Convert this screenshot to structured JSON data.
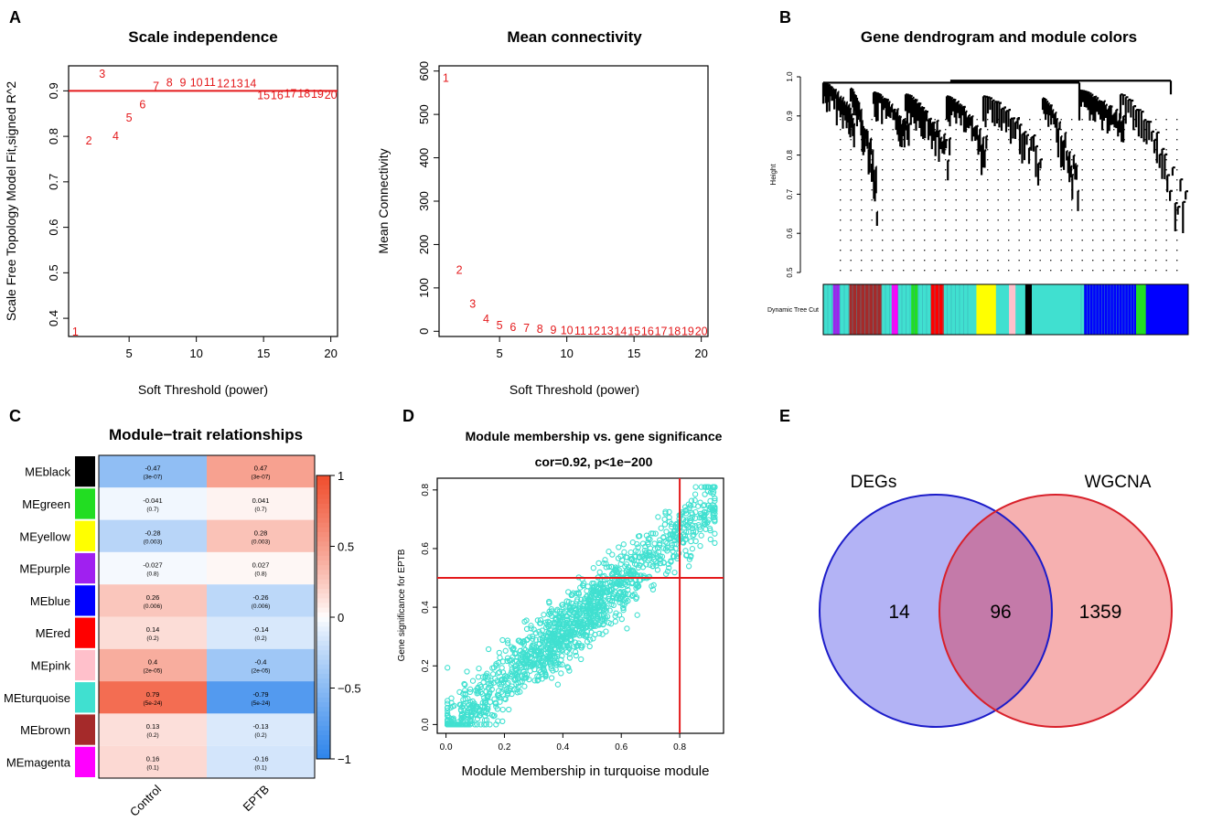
{
  "panel_labels": {
    "a": "A",
    "b": "B",
    "c": "C",
    "d": "D",
    "e": "E"
  },
  "colors": {
    "red": "#e41a1c",
    "black": "#000000",
    "green": "#22dd22",
    "yellow": "#ffff00",
    "purple": "#a020f0",
    "blue": "#0000ff",
    "mred": "#ff0000",
    "pink": "#ffc0cb",
    "turquoise": "#40e0d0",
    "brown": "#a52a2a",
    "magenta": "#ff00ff",
    "venn_left_fill": "#b3b3f5",
    "venn_left_stroke": "#1c1cc9",
    "venn_right_fill": "#f6b0b0",
    "venn_right_stroke": "#d8202a",
    "venn_overlap_fill": "#c47aa9"
  },
  "chart_data": [
    {
      "id": "scale_independence",
      "type": "scatter",
      "title": "Scale independence",
      "xlabel": "Soft Threshold (power)",
      "ylabel": "Scale Free Topology Model Fit,signed R^2",
      "xlim": [
        0.5,
        20.5
      ],
      "ylim": [
        0.36,
        0.955
      ],
      "xticks": [
        "5",
        "10",
        "15",
        "20"
      ],
      "yticks": [
        "0.4",
        "0.5",
        "0.6",
        "0.7",
        "0.8",
        "0.9"
      ],
      "x": [
        1,
        2,
        3,
        4,
        5,
        6,
        7,
        8,
        9,
        10,
        11,
        12,
        13,
        14,
        15,
        16,
        17,
        18,
        19,
        20
      ],
      "values": [
        0.37,
        0.79,
        0.937,
        0.8,
        0.84,
        0.87,
        0.91,
        0.918,
        0.918,
        0.918,
        0.919,
        0.916,
        0.916,
        0.916,
        0.89,
        0.89,
        0.894,
        0.894,
        0.893,
        0.891
      ],
      "point_labels": [
        "1",
        "2",
        "3",
        "4",
        "5",
        "6",
        "7",
        "8",
        "9",
        "10",
        "11",
        "12",
        "13",
        "14",
        "15",
        "16",
        "17",
        "18",
        "19",
        "20"
      ],
      "hline": 0.9
    },
    {
      "id": "mean_connectivity",
      "type": "scatter",
      "title": "Mean connectivity",
      "xlabel": "Soft Threshold (power)",
      "ylabel": "Mean Connectivity",
      "xlim": [
        0.5,
        20.5
      ],
      "ylim": [
        -12,
        612
      ],
      "xticks": [
        "5",
        "10",
        "15",
        "20"
      ],
      "yticks": [
        "0",
        "100",
        "200",
        "300",
        "400",
        "500",
        "600"
      ],
      "x": [
        1,
        2,
        3,
        4,
        5,
        6,
        7,
        8,
        9,
        10,
        11,
        12,
        13,
        14,
        15,
        16,
        17,
        18,
        19,
        20
      ],
      "values": [
        584,
        141,
        63,
        28,
        13,
        9,
        7,
        5,
        3,
        2,
        1,
        1,
        1,
        0,
        0,
        0,
        0,
        0,
        0,
        0
      ],
      "point_labels": [
        "1",
        "2",
        "3",
        "4",
        "5",
        "6",
        "7",
        "8",
        "9",
        "10",
        "11",
        "12",
        "13",
        "14",
        "15",
        "16",
        "17",
        "18",
        "19",
        "20"
      ]
    },
    {
      "id": "dendrogram",
      "type": "other",
      "title": "Gene dendrogram and module colors",
      "ylabel": "Height",
      "yticks": [
        "0.5",
        "0.6",
        "0.7",
        "0.8",
        "0.9",
        "1.0"
      ],
      "ylim": [
        0.5,
        1.0
      ],
      "color_row_label": "Dynamic Tree Cut",
      "module_bar": [
        [
          "#40e0d0",
          3
        ],
        [
          "#a020f0",
          2
        ],
        [
          "#40e0d0",
          3
        ],
        [
          "#a52a2a",
          10
        ],
        [
          "#40e0d0",
          3
        ],
        [
          "#ff00ff",
          2
        ],
        [
          "#40e0d0",
          4
        ],
        [
          "#22dd22",
          2
        ],
        [
          "#40e0d0",
          4
        ],
        [
          "#ff0000",
          4
        ],
        [
          "#40e0d0",
          10
        ],
        [
          "#ffff00",
          6
        ],
        [
          "#40e0d0",
          4
        ],
        [
          "#ffc0cb",
          2
        ],
        [
          "#40e0d0",
          3
        ],
        [
          "#000000",
          2
        ],
        [
          "#40e0d0",
          16
        ],
        [
          "#0000ff",
          16
        ],
        [
          "#22dd22",
          3
        ],
        [
          "#0000ff",
          13
        ]
      ]
    },
    {
      "id": "module_trait",
      "type": "heatmap",
      "title": "Module−trait relationships",
      "columns": [
        "Control",
        "EPTB"
      ],
      "rows": [
        "MEblack",
        "MEgreen",
        "MEyellow",
        "MEpurple",
        "MEblue",
        "MEred",
        "MEpink",
        "MEturquoise",
        "MEbrown",
        "MEmagenta"
      ],
      "row_colors": [
        "#000000",
        "#22dd22",
        "#ffff00",
        "#a020f0",
        "#0000ff",
        "#ff0000",
        "#ffc0cb",
        "#40e0d0",
        "#a52a2a",
        "#ff00ff"
      ],
      "values": [
        [
          -0.47,
          0.47
        ],
        [
          -0.041,
          0.041
        ],
        [
          -0.28,
          0.28
        ],
        [
          -0.027,
          0.027
        ],
        [
          0.26,
          -0.26
        ],
        [
          0.14,
          -0.14
        ],
        [
          0.4,
          -0.4
        ],
        [
          0.79,
          -0.79
        ],
        [
          0.13,
          -0.13
        ],
        [
          0.16,
          -0.16
        ]
      ],
      "value_labels": [
        [
          "-0.47",
          "0.47"
        ],
        [
          "-0.041",
          "0.041"
        ],
        [
          "-0.28",
          "0.28"
        ],
        [
          "-0.027",
          "0.027"
        ],
        [
          "0.26",
          "-0.26"
        ],
        [
          "0.14",
          "-0.14"
        ],
        [
          "0.4",
          "-0.4"
        ],
        [
          "0.79",
          "-0.79"
        ],
        [
          "0.13",
          "-0.13"
        ],
        [
          "0.16",
          "-0.16"
        ]
      ],
      "pvalues": [
        [
          "(3e-07)",
          "(3e-07)"
        ],
        [
          "(0.7)",
          "(0.7)"
        ],
        [
          "(0.003)",
          "(0.003)"
        ],
        [
          "(0.8)",
          "(0.8)"
        ],
        [
          "(0.006)",
          "(0.006)"
        ],
        [
          "(0.2)",
          "(0.2)"
        ],
        [
          "(2e-05)",
          "(2e-05)"
        ],
        [
          "(5e-24)",
          "(5e-24)"
        ],
        [
          "(0.2)",
          "(0.2)"
        ],
        [
          "(0.1)",
          "(0.1)"
        ]
      ],
      "legend_ticks": [
        "1",
        "0.5",
        "0",
        "−0.5",
        "−1"
      ]
    },
    {
      "id": "mm_vs_gs",
      "type": "scatter",
      "title": "Module membership vs. gene significance",
      "subtitle": "cor=0.92, p<1e−200",
      "xlabel": "Module Membership in turquoise module",
      "ylabel": "Gene significance for  EPTB",
      "xlim": [
        -0.03,
        0.95
      ],
      "ylim": [
        -0.03,
        0.84
      ],
      "xticks": [
        "0.0",
        "0.2",
        "0.4",
        "0.6",
        "0.8"
      ],
      "yticks": [
        "0.0",
        "0.2",
        "0.4",
        "0.6",
        "0.8"
      ],
      "n_points": 1455,
      "fit": {
        "slope": 0.84,
        "intercept": -0.02,
        "noise_sd": 0.055
      },
      "vline": 0.8,
      "hline": 0.5
    },
    {
      "id": "venn",
      "type": "other",
      "sets": [
        "DEGs",
        "WGCNA"
      ],
      "only_left": "14",
      "intersection": "96",
      "only_right": "1359"
    }
  ]
}
